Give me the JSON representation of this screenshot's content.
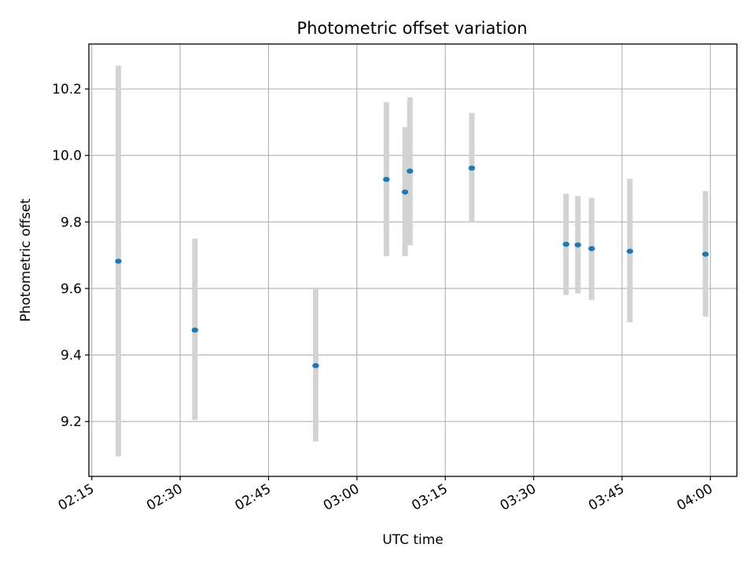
{
  "chart_data": {
    "type": "scatter",
    "title": "Photometric offset variation",
    "xlabel": "UTC time",
    "ylabel": "Photometric offset",
    "x_ticks": [
      "02:15",
      "02:30",
      "02:45",
      "03:00",
      "03:15",
      "03:30",
      "03:45",
      "04:00"
    ],
    "y_ticks": [
      "9.2",
      "9.4",
      "9.6",
      "9.8",
      "10.0",
      "10.2"
    ],
    "xlim": [
      "02:14:30",
      "04:04:30"
    ],
    "ylim": [
      9.035,
      10.335
    ],
    "grid": true,
    "colors": {
      "point": "#1f77b4",
      "errorbar": "#d3d3d3",
      "grid": "#b0b0b0"
    },
    "points": [
      {
        "x": "02:19:30",
        "y": 9.682,
        "low": 9.095,
        "high": 10.27
      },
      {
        "x": "02:32:30",
        "y": 9.475,
        "low": 9.205,
        "high": 9.75
      },
      {
        "x": "02:53:00",
        "y": 9.368,
        "low": 9.14,
        "high": 9.6
      },
      {
        "x": "03:05:00",
        "y": 9.928,
        "low": 9.697,
        "high": 10.16
      },
      {
        "x": "03:08:10",
        "y": 9.89,
        "low": 9.697,
        "high": 10.085
      },
      {
        "x": "03:09:00",
        "y": 9.953,
        "low": 9.73,
        "high": 10.175
      },
      {
        "x": "03:19:30",
        "y": 9.962,
        "low": 9.8,
        "high": 10.128
      },
      {
        "x": "03:35:30",
        "y": 9.733,
        "low": 9.58,
        "high": 9.885
      },
      {
        "x": "03:37:30",
        "y": 9.731,
        "low": 9.585,
        "high": 9.878
      },
      {
        "x": "03:39:50",
        "y": 9.72,
        "low": 9.565,
        "high": 9.873
      },
      {
        "x": "03:46:20",
        "y": 9.712,
        "low": 9.498,
        "high": 9.93
      },
      {
        "x": "03:59:10",
        "y": 9.703,
        "low": 9.515,
        "high": 9.893
      }
    ]
  }
}
